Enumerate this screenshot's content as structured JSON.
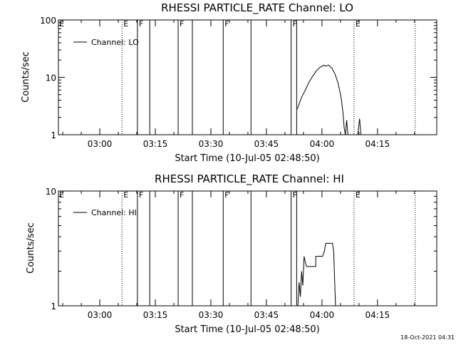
{
  "footer": {
    "timestamp": "18-Oct-2021 04:31"
  },
  "flag_labels": {
    "E": "E",
    "F": "F"
  },
  "chart_data": [
    {
      "type": "line",
      "title": "RHESSI PARTICLE_RATE Channel: LO",
      "xlabel": "Start Time (10-Jul-05 02:48:50)",
      "ylabel": "Counts/sec",
      "yscale": "log",
      "ylim": [
        1,
        100
      ],
      "yticks": [
        {
          "value": 1,
          "label": "1"
        },
        {
          "value": 10,
          "label": "10"
        },
        {
          "value": 100,
          "label": "100"
        }
      ],
      "xlim": [
        "02:48:50",
        "04:31:00"
      ],
      "xticks": [
        {
          "time": "03:00",
          "label": "03:00"
        },
        {
          "time": "03:15",
          "label": "03:15"
        },
        {
          "time": "03:30",
          "label": "03:30"
        },
        {
          "time": "03:45",
          "label": "03:45"
        },
        {
          "time": "04:00",
          "label": "04:00"
        },
        {
          "time": "04:15",
          "label": "04:15"
        }
      ],
      "legend": {
        "position": "top-left",
        "entries": [
          {
            "name": "Channel: LO"
          }
        ]
      },
      "eclipse_lines": [
        {
          "time": "03:06:00",
          "label": "E"
        },
        {
          "time": "04:08:40",
          "label": "E"
        },
        {
          "time": "04:25:10"
        }
      ],
      "flag_lines": [
        {
          "time": "03:10:10",
          "label": "F"
        },
        {
          "time": "03:13:30"
        },
        {
          "time": "03:21:10",
          "label": "F"
        },
        {
          "time": "03:25:00"
        },
        {
          "time": "03:33:20",
          "label": "F"
        },
        {
          "time": "03:40:50"
        },
        {
          "time": "03:51:40",
          "label": "F"
        },
        {
          "time": "03:53:10"
        }
      ],
      "series": [
        {
          "name": "Channel: LO",
          "segments": [
            [
              {
                "t": "03:53:20",
                "y": 2.8
              },
              {
                "t": "03:54:30",
                "y": 4.5
              },
              {
                "t": "03:55:30",
                "y": 6.0
              },
              {
                "t": "03:56:30",
                "y": 8.2
              },
              {
                "t": "03:57:30",
                "y": 10.5
              },
              {
                "t": "03:58:30",
                "y": 13.0
              },
              {
                "t": "03:59:30",
                "y": 15.0
              },
              {
                "t": "04:00:30",
                "y": 16.3
              },
              {
                "t": "04:01:00",
                "y": 15.7
              },
              {
                "t": "04:01:50",
                "y": 16.3
              },
              {
                "t": "04:02:40",
                "y": 14.5
              },
              {
                "t": "04:03:30",
                "y": 11.5
              },
              {
                "t": "04:04:20",
                "y": 8.0
              },
              {
                "t": "04:05:10",
                "y": 4.5
              },
              {
                "t": "04:05:40",
                "y": 2.5
              },
              {
                "t": "04:06:00",
                "y": 1.3
              },
              {
                "t": "04:06:20",
                "y": 1.0
              }
            ],
            [
              {
                "t": "04:06:20",
                "y": 1.0
              },
              {
                "t": "04:06:40",
                "y": 1.8
              },
              {
                "t": "04:07:00",
                "y": 1.0
              }
            ],
            [
              {
                "t": "04:09:40",
                "y": 1.0
              },
              {
                "t": "04:10:10",
                "y": 1.9
              },
              {
                "t": "04:10:30",
                "y": 1.0
              }
            ]
          ]
        }
      ]
    },
    {
      "type": "line",
      "title": "RHESSI PARTICLE_RATE Channel: HI",
      "xlabel": "Start Time (10-Jul-05 02:48:50)",
      "ylabel": "Counts/sec",
      "yscale": "log",
      "ylim": [
        1,
        10
      ],
      "yticks": [
        {
          "value": 1,
          "label": "1"
        },
        {
          "value": 10,
          "label": "10"
        }
      ],
      "xlim": [
        "02:48:50",
        "04:31:00"
      ],
      "xticks": [
        {
          "time": "03:00",
          "label": "03:00"
        },
        {
          "time": "03:15",
          "label": "03:15"
        },
        {
          "time": "03:30",
          "label": "03:30"
        },
        {
          "time": "03:45",
          "label": "03:45"
        },
        {
          "time": "04:00",
          "label": "04:00"
        },
        {
          "time": "04:15",
          "label": "04:15"
        }
      ],
      "legend": {
        "position": "top-left",
        "entries": [
          {
            "name": "Channel: HI"
          }
        ]
      },
      "eclipse_lines": [
        {
          "time": "03:06:00",
          "label": "E"
        },
        {
          "time": "04:08:40",
          "label": "E"
        },
        {
          "time": "04:25:10"
        }
      ],
      "flag_lines": [
        {
          "time": "03:10:10",
          "label": "F"
        },
        {
          "time": "03:13:30"
        },
        {
          "time": "03:21:10",
          "label": "F"
        },
        {
          "time": "03:25:00"
        },
        {
          "time": "03:33:20",
          "label": "F"
        },
        {
          "time": "03:40:50"
        },
        {
          "time": "03:51:40",
          "label": "F"
        },
        {
          "time": "03:53:10"
        }
      ],
      "series": [
        {
          "name": "Channel: HI",
          "segments": [
            [
              {
                "t": "03:53:30",
                "y": 1.0
              },
              {
                "t": "03:53:50",
                "y": 1.6
              },
              {
                "t": "03:54:10",
                "y": 1.2
              },
              {
                "t": "03:54:30",
                "y": 2.0
              },
              {
                "t": "03:54:50",
                "y": 1.5
              },
              {
                "t": "03:55:10",
                "y": 2.7
              },
              {
                "t": "03:55:30",
                "y": 2.4
              },
              {
                "t": "03:55:50",
                "y": 2.2
              },
              {
                "t": "03:58:20",
                "y": 2.2
              },
              {
                "t": "03:58:20",
                "y": 2.7
              },
              {
                "t": "04:00:10",
                "y": 2.7
              },
              {
                "t": "04:00:40",
                "y": 3.0
              },
              {
                "t": "04:01:00",
                "y": 3.5
              },
              {
                "t": "04:02:50",
                "y": 3.5
              },
              {
                "t": "04:03:10",
                "y": 3.0
              },
              {
                "t": "04:03:40",
                "y": 1.0
              }
            ]
          ]
        }
      ]
    }
  ]
}
